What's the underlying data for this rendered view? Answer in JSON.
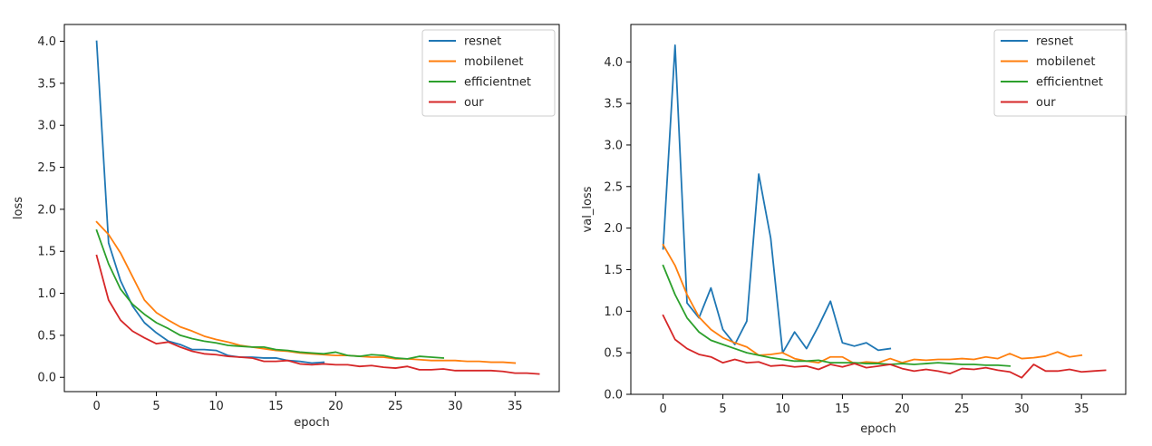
{
  "colors": {
    "resnet": "#1f77b4",
    "mobilenet": "#ff7f0e",
    "efficientnet": "#2ca02c",
    "our": "#d62728"
  },
  "chart_data": [
    {
      "type": "line",
      "title": "",
      "xlabel": "epoch",
      "ylabel": "loss",
      "xlim": [
        -2.7,
        38.7
      ],
      "ylim": [
        -0.17,
        4.2
      ],
      "xticks": [
        0,
        5,
        10,
        15,
        20,
        25,
        30,
        35
      ],
      "yticks": [
        0.0,
        0.5,
        1.0,
        1.5,
        2.0,
        2.5,
        3.0,
        3.5,
        4.0
      ],
      "ytick_labels": [
        "0.0",
        "0.5",
        "1.0",
        "1.5",
        "2.0",
        "2.5",
        "3.0",
        "3.5",
        "4.0"
      ],
      "legend": "top-right",
      "grid": false,
      "series": [
        {
          "name": "resnet",
          "color_key": "resnet",
          "values": [
            4.0,
            1.6,
            1.15,
            0.85,
            0.65,
            0.53,
            0.43,
            0.39,
            0.33,
            0.33,
            0.32,
            0.26,
            0.24,
            0.24,
            0.23,
            0.23,
            0.2,
            0.19,
            0.17,
            0.18
          ]
        },
        {
          "name": "mobilenet",
          "color_key": "mobilenet",
          "values": [
            1.85,
            1.7,
            1.48,
            1.2,
            0.92,
            0.77,
            0.68,
            0.6,
            0.55,
            0.49,
            0.45,
            0.42,
            0.38,
            0.36,
            0.34,
            0.32,
            0.31,
            0.29,
            0.28,
            0.27,
            0.26,
            0.26,
            0.25,
            0.24,
            0.24,
            0.22,
            0.22,
            0.21,
            0.2,
            0.2,
            0.2,
            0.19,
            0.19,
            0.18,
            0.18,
            0.17
          ]
        },
        {
          "name": "efficientnet",
          "color_key": "efficientnet",
          "values": [
            1.75,
            1.35,
            1.05,
            0.87,
            0.75,
            0.65,
            0.58,
            0.5,
            0.46,
            0.43,
            0.41,
            0.38,
            0.37,
            0.36,
            0.36,
            0.33,
            0.32,
            0.3,
            0.29,
            0.28,
            0.3,
            0.26,
            0.25,
            0.27,
            0.26,
            0.23,
            0.22,
            0.25,
            0.24,
            0.23
          ]
        },
        {
          "name": "our",
          "color_key": "our",
          "values": [
            1.45,
            0.92,
            0.68,
            0.55,
            0.47,
            0.4,
            0.42,
            0.36,
            0.31,
            0.28,
            0.27,
            0.25,
            0.24,
            0.23,
            0.19,
            0.19,
            0.2,
            0.16,
            0.15,
            0.16,
            0.15,
            0.15,
            0.13,
            0.14,
            0.12,
            0.11,
            0.13,
            0.09,
            0.09,
            0.1,
            0.08,
            0.08,
            0.08,
            0.08,
            0.07,
            0.05,
            0.05,
            0.04
          ]
        }
      ]
    },
    {
      "type": "line",
      "title": "",
      "xlabel": "epoch",
      "ylabel": "val_loss",
      "xlim": [
        -2.7,
        38.7
      ],
      "ylim": [
        0.0,
        4.45
      ],
      "xticks": [
        0,
        5,
        10,
        15,
        20,
        25,
        30,
        35
      ],
      "yticks": [
        0.0,
        0.5,
        1.0,
        1.5,
        2.0,
        2.5,
        3.0,
        3.5,
        4.0
      ],
      "ytick_labels": [
        "0.0",
        "0.5",
        "1.0",
        "1.5",
        "2.0",
        "2.5",
        "3.0",
        "3.5",
        "4.0"
      ],
      "legend": "top-right",
      "grid": false,
      "series": [
        {
          "name": "resnet",
          "color_key": "resnet",
          "values": [
            1.75,
            4.2,
            1.1,
            0.92,
            1.28,
            0.78,
            0.6,
            0.88,
            2.65,
            1.88,
            0.5,
            0.75,
            0.55,
            0.82,
            1.12,
            0.62,
            0.58,
            0.62,
            0.53,
            0.55
          ]
        },
        {
          "name": "mobilenet",
          "color_key": "mobilenet",
          "values": [
            1.8,
            1.55,
            1.2,
            0.93,
            0.78,
            0.68,
            0.62,
            0.57,
            0.47,
            0.48,
            0.5,
            0.43,
            0.4,
            0.38,
            0.45,
            0.45,
            0.37,
            0.39,
            0.38,
            0.43,
            0.38,
            0.42,
            0.41,
            0.42,
            0.42,
            0.43,
            0.42,
            0.45,
            0.43,
            0.49,
            0.43,
            0.44,
            0.46,
            0.51,
            0.45,
            0.47
          ]
        },
        {
          "name": "efficientnet",
          "color_key": "efficientnet",
          "values": [
            1.55,
            1.2,
            0.92,
            0.75,
            0.65,
            0.6,
            0.55,
            0.5,
            0.47,
            0.44,
            0.42,
            0.4,
            0.4,
            0.41,
            0.38,
            0.38,
            0.38,
            0.37,
            0.37,
            0.36,
            0.37,
            0.36,
            0.37,
            0.38,
            0.37,
            0.36,
            0.36,
            0.35,
            0.35,
            0.34
          ]
        },
        {
          "name": "our",
          "color_key": "our",
          "values": [
            0.95,
            0.66,
            0.55,
            0.48,
            0.45,
            0.38,
            0.42,
            0.38,
            0.39,
            0.34,
            0.35,
            0.33,
            0.34,
            0.3,
            0.36,
            0.33,
            0.37,
            0.32,
            0.34,
            0.36,
            0.31,
            0.28,
            0.3,
            0.28,
            0.25,
            0.31,
            0.3,
            0.32,
            0.29,
            0.27,
            0.2,
            0.36,
            0.28,
            0.28,
            0.3,
            0.27,
            0.28,
            0.29
          ]
        }
      ]
    }
  ]
}
